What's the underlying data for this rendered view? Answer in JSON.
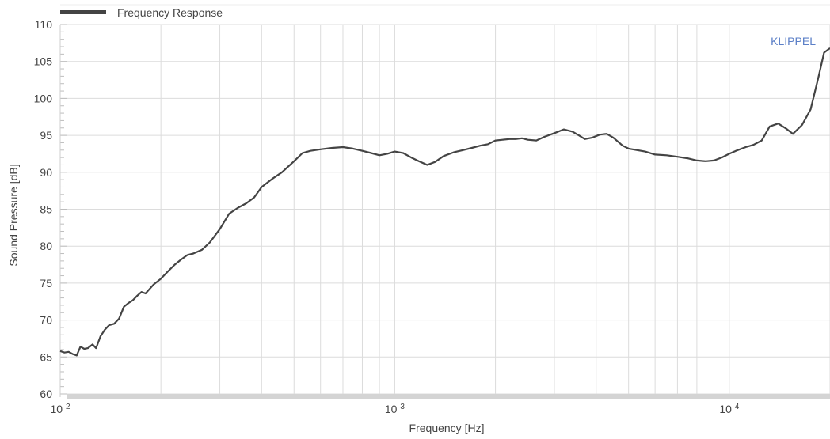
{
  "chart_data": {
    "type": "line",
    "xlabel": "Frequency  [Hz]",
    "ylabel": "Sound Pressure  [dB]",
    "x_scale": "log",
    "xlim": [
      100,
      20000
    ],
    "ylim": [
      60,
      110
    ],
    "grid": true,
    "legend_position": "top-left",
    "y_ticks": [
      "60",
      "65",
      "70",
      "75",
      "80",
      "85",
      "90",
      "95",
      "100",
      "105",
      "110"
    ],
    "x_ticks": [
      {
        "base": "10",
        "exp": "2",
        "value": 100
      },
      {
        "base": "10",
        "exp": "3",
        "value": 1000
      },
      {
        "base": "10",
        "exp": "4",
        "value": 10000
      }
    ],
    "watermark": "KLIPPEL",
    "series": [
      {
        "name": "Frequency Response",
        "color": "#444444",
        "x": [
          100,
          103,
          106,
          109,
          112,
          115,
          118,
          121,
          125,
          128,
          132,
          136,
          140,
          145,
          150,
          155,
          160,
          165,
          170,
          175,
          180,
          190,
          200,
          210,
          220,
          230,
          240,
          250,
          265,
          280,
          300,
          320,
          340,
          360,
          380,
          400,
          430,
          460,
          500,
          530,
          560,
          600,
          650,
          700,
          750,
          800,
          850,
          900,
          950,
          1000,
          1060,
          1120,
          1180,
          1250,
          1320,
          1400,
          1500,
          1600,
          1700,
          1800,
          1900,
          2000,
          2100,
          2200,
          2300,
          2400,
          2500,
          2650,
          2800,
          3000,
          3200,
          3400,
          3550,
          3700,
          3900,
          4100,
          4300,
          4500,
          4800,
          5000,
          5300,
          5600,
          6000,
          6500,
          7000,
          7500,
          8000,
          8500,
          9000,
          9500,
          10000,
          10600,
          11200,
          11800,
          12500,
          13200,
          14000,
          14800,
          15500,
          16500,
          17500,
          18500,
          19200,
          20000
        ],
        "y": [
          65.8,
          65.6,
          65.7,
          65.4,
          65.2,
          66.4,
          66.1,
          66.2,
          66.7,
          66.2,
          67.8,
          68.7,
          69.3,
          69.5,
          70.2,
          71.8,
          72.3,
          72.7,
          73.3,
          73.8,
          73.6,
          74.8,
          75.6,
          76.6,
          77.5,
          78.2,
          78.8,
          79.0,
          79.5,
          80.5,
          82.3,
          84.4,
          85.2,
          85.8,
          86.6,
          88.0,
          89.1,
          90.0,
          91.5,
          92.6,
          92.9,
          93.1,
          93.3,
          93.4,
          93.2,
          92.9,
          92.6,
          92.3,
          92.5,
          92.8,
          92.6,
          92.0,
          91.5,
          91.0,
          91.4,
          92.2,
          92.7,
          93.0,
          93.3,
          93.6,
          93.8,
          94.3,
          94.4,
          94.5,
          94.5,
          94.6,
          94.4,
          94.3,
          94.8,
          95.3,
          95.8,
          95.5,
          95.0,
          94.5,
          94.7,
          95.1,
          95.2,
          94.7,
          93.6,
          93.2,
          93.0,
          92.8,
          92.4,
          92.3,
          92.1,
          91.9,
          91.6,
          91.5,
          91.6,
          92.0,
          92.5,
          93.0,
          93.4,
          93.7,
          94.3,
          96.2,
          96.6,
          95.9,
          95.2,
          96.4,
          98.5,
          103.0,
          106.2,
          106.8
        ]
      }
    ]
  }
}
